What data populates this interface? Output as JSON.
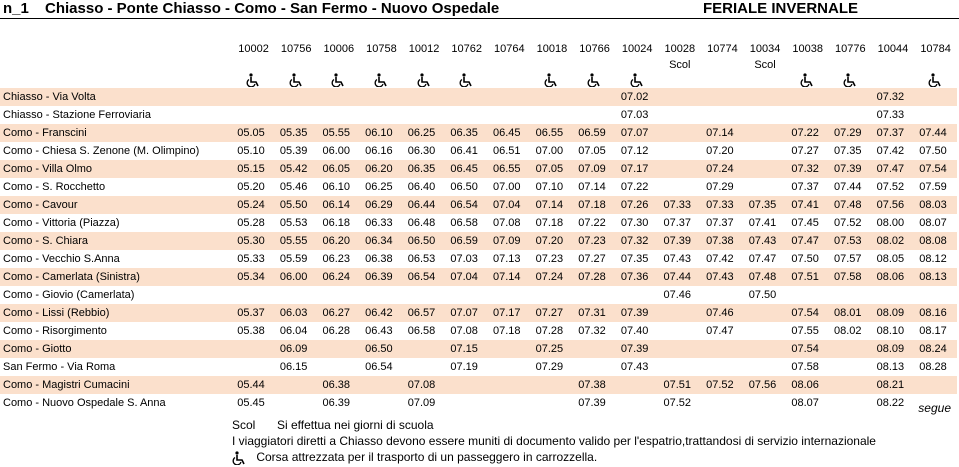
{
  "header": {
    "line": "n_1",
    "title": "Chiasso - Ponte Chiasso - Como - San Fermo - Nuovo Ospedale",
    "period": "FERIALE INVERNALE"
  },
  "trips": [
    {
      "number": "10002",
      "note": null,
      "accessible": true
    },
    {
      "number": "10756",
      "note": null,
      "accessible": true
    },
    {
      "number": "10006",
      "note": null,
      "accessible": true
    },
    {
      "number": "10758",
      "note": null,
      "accessible": true
    },
    {
      "number": "10012",
      "note": null,
      "accessible": true
    },
    {
      "number": "10762",
      "note": null,
      "accessible": true
    },
    {
      "number": "10764",
      "note": null,
      "accessible": false
    },
    {
      "number": "10018",
      "note": null,
      "accessible": true
    },
    {
      "number": "10766",
      "note": null,
      "accessible": true
    },
    {
      "number": "10024",
      "note": null,
      "accessible": true
    },
    {
      "number": "10028",
      "note": "Scol",
      "accessible": false
    },
    {
      "number": "10774",
      "note": null,
      "accessible": false
    },
    {
      "number": "10034",
      "note": "Scol",
      "accessible": false
    },
    {
      "number": "10038",
      "note": null,
      "accessible": true
    },
    {
      "number": "10776",
      "note": null,
      "accessible": true
    },
    {
      "number": "10044",
      "note": null,
      "accessible": false
    },
    {
      "number": "10784",
      "note": null,
      "accessible": true
    }
  ],
  "stops": [
    {
      "name": "Chiasso - Via Volta",
      "times": [
        null,
        null,
        null,
        null,
        null,
        null,
        null,
        null,
        null,
        "07.02",
        null,
        null,
        null,
        null,
        null,
        "07.32",
        null
      ]
    },
    {
      "name": "Chiasso - Stazione Ferroviaria",
      "times": [
        null,
        null,
        null,
        null,
        null,
        null,
        null,
        null,
        null,
        "07.03",
        null,
        null,
        null,
        null,
        null,
        "07.33",
        null
      ]
    },
    {
      "name": "Como - Franscini",
      "times": [
        "05.05",
        "05.35",
        "05.55",
        "06.10",
        "06.25",
        "06.35",
        "06.45",
        "06.55",
        "06.59",
        "07.07",
        null,
        "07.14",
        null,
        "07.22",
        "07.29",
        "07.37",
        "07.44"
      ]
    },
    {
      "name": "Como - Chiesa S. Zenone (M. Olimpino)",
      "times": [
        "05.10",
        "05.39",
        "06.00",
        "06.16",
        "06.30",
        "06.41",
        "06.51",
        "07.00",
        "07.05",
        "07.12",
        null,
        "07.20",
        null,
        "07.27",
        "07.35",
        "07.42",
        "07.50"
      ]
    },
    {
      "name": "Como - Villa Olmo",
      "times": [
        "05.15",
        "05.42",
        "06.05",
        "06.20",
        "06.35",
        "06.45",
        "06.55",
        "07.05",
        "07.09",
        "07.17",
        null,
        "07.24",
        null,
        "07.32",
        "07.39",
        "07.47",
        "07.54"
      ]
    },
    {
      "name": "Como - S. Rocchetto",
      "times": [
        "05.20",
        "05.46",
        "06.10",
        "06.25",
        "06.40",
        "06.50",
        "07.00",
        "07.10",
        "07.14",
        "07.22",
        null,
        "07.29",
        null,
        "07.37",
        "07.44",
        "07.52",
        "07.59"
      ]
    },
    {
      "name": "Como - Cavour",
      "times": [
        "05.24",
        "05.50",
        "06.14",
        "06.29",
        "06.44",
        "06.54",
        "07.04",
        "07.14",
        "07.18",
        "07.26",
        "07.33",
        "07.33",
        "07.35",
        "07.41",
        "07.48",
        "07.56",
        "08.03"
      ]
    },
    {
      "name": "Como - Vittoria (Piazza)",
      "times": [
        "05.28",
        "05.53",
        "06.18",
        "06.33",
        "06.48",
        "06.58",
        "07.08",
        "07.18",
        "07.22",
        "07.30",
        "07.37",
        "07.37",
        "07.41",
        "07.45",
        "07.52",
        "08.00",
        "08.07"
      ]
    },
    {
      "name": "Como - S. Chiara",
      "times": [
        "05.30",
        "05.55",
        "06.20",
        "06.34",
        "06.50",
        "06.59",
        "07.09",
        "07.20",
        "07.23",
        "07.32",
        "07.39",
        "07.38",
        "07.43",
        "07.47",
        "07.53",
        "08.02",
        "08.08"
      ]
    },
    {
      "name": "Como - Vecchio S.Anna",
      "times": [
        "05.33",
        "05.59",
        "06.23",
        "06.38",
        "06.53",
        "07.03",
        "07.13",
        "07.23",
        "07.27",
        "07.35",
        "07.43",
        "07.42",
        "07.47",
        "07.50",
        "07.57",
        "08.05",
        "08.12"
      ]
    },
    {
      "name": "Como - Camerlata (Sinistra)",
      "times": [
        "05.34",
        "06.00",
        "06.24",
        "06.39",
        "06.54",
        "07.04",
        "07.14",
        "07.24",
        "07.28",
        "07.36",
        "07.44",
        "07.43",
        "07.48",
        "07.51",
        "07.58",
        "08.06",
        "08.13"
      ]
    },
    {
      "name": "Como - Giovio (Camerlata)",
      "times": [
        null,
        null,
        null,
        null,
        null,
        null,
        null,
        null,
        null,
        null,
        "07.46",
        null,
        "07.50",
        null,
        null,
        null,
        null
      ]
    },
    {
      "name": "Como - Lissi (Rebbio)",
      "times": [
        "05.37",
        "06.03",
        "06.27",
        "06.42",
        "06.57",
        "07.07",
        "07.17",
        "07.27",
        "07.31",
        "07.39",
        null,
        "07.46",
        null,
        "07.54",
        "08.01",
        "08.09",
        "08.16"
      ]
    },
    {
      "name": "Como - Risorgimento",
      "times": [
        "05.38",
        "06.04",
        "06.28",
        "06.43",
        "06.58",
        "07.08",
        "07.18",
        "07.28",
        "07.32",
        "07.40",
        null,
        "07.47",
        null,
        "07.55",
        "08.02",
        "08.10",
        "08.17"
      ]
    },
    {
      "name": "Como - Giotto",
      "times": [
        null,
        "06.09",
        null,
        "06.50",
        null,
        "07.15",
        null,
        "07.25",
        null,
        "07.39",
        null,
        null,
        null,
        "07.54",
        null,
        "08.09",
        "08.24"
      ]
    },
    {
      "name": "San Fermo - Via Roma",
      "times": [
        null,
        "06.15",
        null,
        "06.54",
        null,
        "07.19",
        null,
        "07.29",
        null,
        "07.43",
        null,
        null,
        null,
        "07.58",
        null,
        "08.13",
        "08.28"
      ]
    },
    {
      "name": "Como - Magistri Cumacini",
      "times": [
        "05.44",
        null,
        "06.38",
        null,
        "07.08",
        null,
        null,
        null,
        "07.38",
        null,
        "07.51",
        "07.52",
        "07.56",
        "08.06",
        null,
        "08.21",
        null
      ]
    },
    {
      "name": "Como - Nuovo Ospedale S. Anna",
      "times": [
        "05.45",
        null,
        "06.39",
        null,
        "07.09",
        null,
        null,
        null,
        "07.39",
        null,
        "07.52",
        null,
        null,
        "08.07",
        null,
        "08.22",
        null
      ]
    }
  ],
  "footer": {
    "continues": "segue",
    "legend_code": "Scol",
    "legend_text": "Si effettua nei giorni di scuola",
    "notice": "I viaggiatori diretti a Chiasso devono essere muniti di documento valido per l'espatrio,trattandosi di servizio internazionale",
    "accessible_text": "Corsa attrezzata per il trasporto di un passeggero in carrozzella."
  }
}
